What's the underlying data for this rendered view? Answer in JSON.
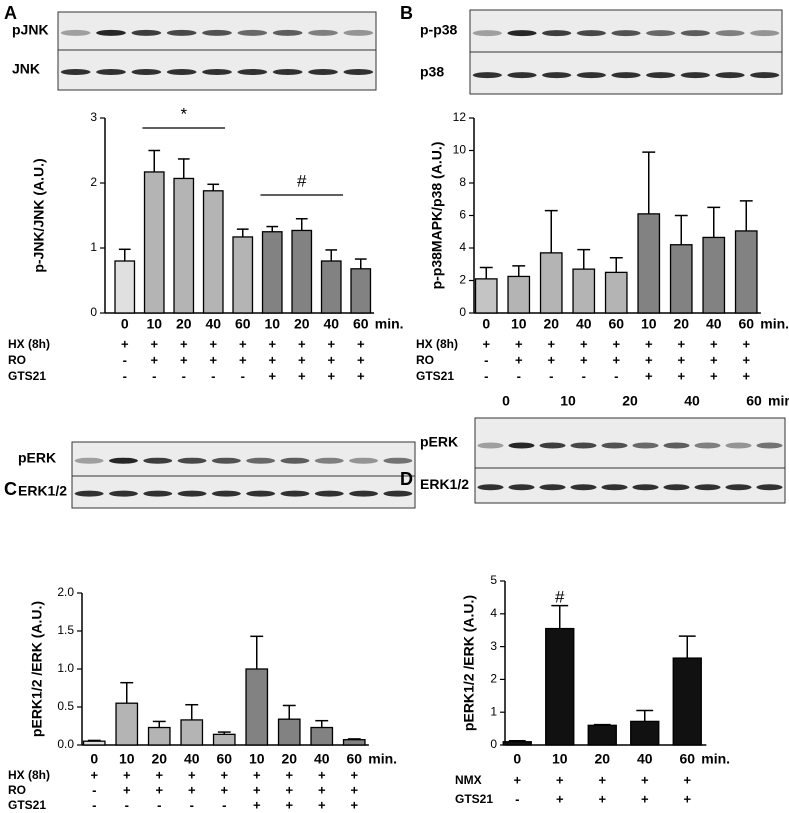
{
  "chart_data": [
    {
      "type": "bar",
      "panel": "A",
      "blot_labels": [
        "pJNK",
        "JNK"
      ],
      "ylabel": "p-JNK/JNK (A.U.)",
      "categories": [
        "0",
        "10",
        "20",
        "40",
        "60",
        "10",
        "20",
        "40",
        "60"
      ],
      "x_unit": "min.",
      "values": [
        0.8,
        2.17,
        2.07,
        1.88,
        1.17,
        1.25,
        1.27,
        0.8,
        0.68
      ],
      "errors": [
        0.18,
        0.33,
        0.3,
        0.1,
        0.12,
        0.08,
        0.18,
        0.17,
        0.15
      ],
      "colors": [
        "#e0e0e0",
        "#b4b4b4",
        "#b4b4b4",
        "#b4b4b4",
        "#b4b4b4",
        "#828282",
        "#828282",
        "#828282",
        "#828282"
      ],
      "ylim": [
        0,
        3
      ],
      "yticks": [
        0,
        1,
        2,
        3
      ],
      "conditions": [
        {
          "label": "HX (8h)",
          "values": [
            "+",
            "+",
            "+",
            "+",
            "+",
            "+",
            "+",
            "+",
            "+"
          ]
        },
        {
          "label": "RO",
          "values": [
            "-",
            "+",
            "+",
            "+",
            "+",
            "+",
            "+",
            "+",
            "+"
          ]
        },
        {
          "label": "GTS21",
          "values": [
            "-",
            "-",
            "-",
            "-",
            "-",
            "+",
            "+",
            "+",
            "+"
          ]
        }
      ],
      "annotations": [
        "*",
        "#"
      ]
    },
    {
      "type": "bar",
      "panel": "B",
      "blot_labels": [
        "p-p38",
        "p38"
      ],
      "ylabel": "p-p38MAPK/p38 (A.U.)",
      "categories": [
        "0",
        "10",
        "20",
        "40",
        "60",
        "10",
        "20",
        "40",
        "60"
      ],
      "x_unit": "min.",
      "values": [
        2.1,
        2.25,
        3.7,
        2.7,
        2.5,
        6.1,
        4.2,
        4.65,
        5.05
      ],
      "errors": [
        0.7,
        0.65,
        2.6,
        1.2,
        0.9,
        3.8,
        1.8,
        1.85,
        1.85
      ],
      "colors": [
        "#c4c4c4",
        "#b4b4b4",
        "#b4b4b4",
        "#b4b4b4",
        "#b4b4b4",
        "#828282",
        "#828282",
        "#828282",
        "#828282"
      ],
      "ylim": [
        0,
        12
      ],
      "yticks": [
        0,
        2,
        4,
        6,
        8,
        10,
        12
      ],
      "conditions": [
        {
          "label": "HX (8h)",
          "values": [
            "+",
            "+",
            "+",
            "+",
            "+",
            "+",
            "+",
            "+",
            "+"
          ]
        },
        {
          "label": "RO",
          "values": [
            "-",
            "+",
            "+",
            "+",
            "+",
            "+",
            "+",
            "+",
            "+"
          ]
        },
        {
          "label": "GTS21",
          "values": [
            "-",
            "-",
            "-",
            "-",
            "-",
            "+",
            "+",
            "+",
            "+"
          ]
        }
      ],
      "annotations": []
    },
    {
      "type": "bar",
      "panel": "C",
      "blot_labels": [
        "pERK",
        "ERK1/2"
      ],
      "ylabel": "pERK1/2 /ERK (A.U.)",
      "categories": [
        "0",
        "10",
        "20",
        "40",
        "60",
        "10",
        "20",
        "40",
        "60"
      ],
      "x_unit": "min.",
      "values": [
        0.05,
        0.55,
        0.23,
        0.33,
        0.14,
        1.0,
        0.34,
        0.23,
        0.07
      ],
      "errors": [
        0.01,
        0.27,
        0.08,
        0.2,
        0.03,
        0.43,
        0.18,
        0.09,
        0.01
      ],
      "colors": [
        "#e0e0e0",
        "#b4b4b4",
        "#b4b4b4",
        "#b4b4b4",
        "#b4b4b4",
        "#828282",
        "#828282",
        "#828282",
        "#828282"
      ],
      "ylim": [
        0,
        2
      ],
      "yticks": [
        {
          "value": 0,
          "label": "0.0"
        },
        {
          "value": 0.5,
          "label": "0.5"
        },
        {
          "value": 1,
          "label": "1.0"
        },
        {
          "value": 1.5,
          "label": "1.5"
        },
        {
          "value": 2,
          "label": "2.0"
        }
      ],
      "conditions": [
        {
          "label": "HX (8h)",
          "values": [
            "+",
            "+",
            "+",
            "+",
            "+",
            "+",
            "+",
            "+",
            "+"
          ]
        },
        {
          "label": "RO",
          "values": [
            "-",
            "+",
            "+",
            "+",
            "+",
            "+",
            "+",
            "+",
            "+"
          ]
        },
        {
          "label": "GTS21",
          "values": [
            "-",
            "-",
            "-",
            "-",
            "-",
            "+",
            "+",
            "+",
            "+"
          ]
        }
      ],
      "annotations": []
    },
    {
      "type": "bar",
      "panel": "D",
      "blot_labels": [
        "pERK",
        "ERK1/2"
      ],
      "ylabel": "pERK1/2 /ERK (A.U.)",
      "categories": [
        "0",
        "10",
        "20",
        "40",
        "60"
      ],
      "x_unit": "min.",
      "values": [
        0.1,
        3.55,
        0.6,
        0.72,
        2.65
      ],
      "errors": [
        0.03,
        0.7,
        0.02,
        0.33,
        0.67
      ],
      "colors": [
        "#111111",
        "#111111",
        "#111111",
        "#111111",
        "#111111"
      ],
      "ylim": [
        0,
        5
      ],
      "yticks": [
        0,
        1,
        2,
        3,
        4,
        5
      ],
      "conditions": [
        {
          "label": "NMX",
          "values": [
            "+",
            "+",
            "+",
            "+",
            "+"
          ]
        },
        {
          "label": "GTS21",
          "values": [
            "-",
            "+",
            "+",
            "+",
            "+"
          ]
        }
      ],
      "annotations": [
        "#"
      ]
    }
  ]
}
